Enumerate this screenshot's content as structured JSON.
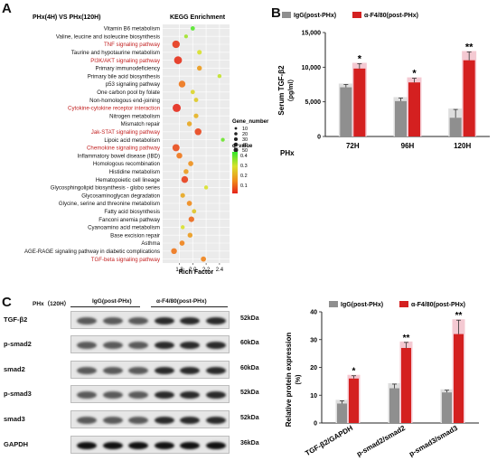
{
  "colors": {
    "accent_red": "#d42020",
    "gray": "#8f8f8f",
    "pathway_red": "#c21f1f",
    "grid": "#e9e9e9",
    "panel_bg": "#efefef"
  },
  "panels": {
    "a": "A",
    "b": "B",
    "c": "C"
  },
  "chart_data": [
    {
      "id": "kegg",
      "type": "scatter",
      "title": "KEGG Enrichment",
      "subtitle": "PHx(4H) VS PHx(120H)",
      "xlabel": "Rich Factor",
      "xlim": [
        1.55,
        2.55
      ],
      "xticks": [
        "1.8",
        "2.0",
        "2.2",
        "2.4"
      ],
      "xtick_values": [
        1.8,
        2.0,
        2.2,
        2.4
      ],
      "size_legend_title": "Gene_number",
      "size_legend": [
        "10",
        "20",
        "30",
        "40",
        "50"
      ],
      "size_legend_values": [
        10,
        20,
        30,
        40,
        50
      ],
      "color_legend_title": "q_value",
      "color_legend": [
        "0.4",
        "0.3",
        "0.2",
        "0.1"
      ],
      "color_legend_values": [
        0.4,
        0.3,
        0.2,
        0.1
      ],
      "pathways": [
        {
          "name": "Vitamin B6 metabolism",
          "x": 2.0,
          "gene": 8,
          "q": 0.42,
          "highlight": false
        },
        {
          "name": "Valine, leucine and isoleucine biosynthesis",
          "x": 1.9,
          "gene": 5,
          "q": 0.35,
          "highlight": false
        },
        {
          "name": "TNF signaling pathway",
          "x": 1.75,
          "gene": 40,
          "q": 0.03,
          "highlight": true
        },
        {
          "name": "Taurine and hypotaurine metabolism",
          "x": 2.1,
          "gene": 10,
          "q": 0.3,
          "highlight": false
        },
        {
          "name": "PI3K/AKT signaling pathway",
          "x": 1.78,
          "gene": 45,
          "q": 0.02,
          "highlight": true
        },
        {
          "name": "Primary immunodeficiency",
          "x": 2.1,
          "gene": 12,
          "q": 0.18,
          "highlight": false
        },
        {
          "name": "Primary bile acid biosynthesis",
          "x": 2.4,
          "gene": 6,
          "q": 0.32,
          "highlight": false
        },
        {
          "name": "p53 signaling pathway",
          "x": 1.84,
          "gene": 30,
          "q": 0.12,
          "highlight": false
        },
        {
          "name": "One carbon pool by folate",
          "x": 2.0,
          "gene": 8,
          "q": 0.28,
          "highlight": false
        },
        {
          "name": "Non-homologous end-joining",
          "x": 2.05,
          "gene": 8,
          "q": 0.26,
          "highlight": false
        },
        {
          "name": "Cytokine-cytokine receptor interaction",
          "x": 1.76,
          "gene": 50,
          "q": 0.01,
          "highlight": true
        },
        {
          "name": "Nitrogen metabolism",
          "x": 2.05,
          "gene": 10,
          "q": 0.22,
          "highlight": false
        },
        {
          "name": "Mismatch repair",
          "x": 1.95,
          "gene": 12,
          "q": 0.2,
          "highlight": false
        },
        {
          "name": "Jak-STAT signaling pathway",
          "x": 2.08,
          "gene": 30,
          "q": 0.05,
          "highlight": true
        },
        {
          "name": "Lipoic acid metabolism",
          "x": 2.45,
          "gene": 5,
          "q": 0.4,
          "highlight": false
        },
        {
          "name": "Chemokine signaling pathway",
          "x": 1.75,
          "gene": 35,
          "q": 0.06,
          "highlight": true
        },
        {
          "name": "Inflammatory bowel disease (IBD)",
          "x": 1.8,
          "gene": 20,
          "q": 0.12,
          "highlight": false
        },
        {
          "name": "Homologous recombination",
          "x": 1.97,
          "gene": 14,
          "q": 0.16,
          "highlight": false
        },
        {
          "name": "Histidine metabolism",
          "x": 1.9,
          "gene": 12,
          "q": 0.18,
          "highlight": false
        },
        {
          "name": "Hematopoietic cell lineage",
          "x": 1.88,
          "gene": 30,
          "q": 0.04,
          "highlight": false
        },
        {
          "name": "Glycosphingolipid biosynthesis - globo series",
          "x": 2.2,
          "gene": 6,
          "q": 0.3,
          "highlight": false
        },
        {
          "name": "Glycosaminoglycan degradation",
          "x": 1.85,
          "gene": 10,
          "q": 0.2,
          "highlight": false
        },
        {
          "name": "Glycine, serine and threonine metabolism",
          "x": 1.95,
          "gene": 14,
          "q": 0.15,
          "highlight": false
        },
        {
          "name": "Fatty acid biosynthesis",
          "x": 2.02,
          "gene": 8,
          "q": 0.25,
          "highlight": false
        },
        {
          "name": "Fanconi anemia pathway",
          "x": 1.98,
          "gene": 18,
          "q": 0.1,
          "highlight": false
        },
        {
          "name": "Cyanoamino acid metabolism",
          "x": 1.85,
          "gene": 6,
          "q": 0.3,
          "highlight": false
        },
        {
          "name": "Base excision repair",
          "x": 1.96,
          "gene": 12,
          "q": 0.18,
          "highlight": false
        },
        {
          "name": "Asthma",
          "x": 1.84,
          "gene": 14,
          "q": 0.14,
          "highlight": false
        },
        {
          "name": "AGE-RAGE signaling pathway in diabetic complications",
          "x": 1.72,
          "gene": 20,
          "q": 0.12,
          "highlight": false
        },
        {
          "name": "TGF-beta signaling pathway",
          "x": 2.16,
          "gene": 14,
          "q": 0.14,
          "highlight": true
        }
      ]
    },
    {
      "id": "serum",
      "type": "bar",
      "ylabel": "Serum TGF-β2\n（pg/ml）",
      "ylabel_line1": "Serum TGF-β2",
      "ylabel_line2": "（pg/ml）",
      "xgroup_label": "PHx",
      "categories": [
        "72H",
        "96H",
        "120H"
      ],
      "ylim": [
        0,
        15000
      ],
      "yticks": [
        "0",
        "5,000",
        "10,000",
        "15,000"
      ],
      "ytick_values": [
        0,
        5000,
        10000,
        15000
      ],
      "series": [
        {
          "name": "IgG(post-PHx)",
          "values": [
            7100,
            5100,
            2700
          ],
          "errors": [
            400,
            450,
            1200
          ]
        },
        {
          "name": "α-F4/80(post-PHx)",
          "values": [
            9800,
            7800,
            11000
          ],
          "errors": [
            700,
            600,
            1200
          ]
        }
      ],
      "significance": [
        "*",
        "*",
        "**"
      ]
    },
    {
      "id": "protein",
      "type": "bar",
      "ylabel": "Relative protein expression",
      "ylabel_unit": "(%)",
      "categories": [
        "TGF-β2/GAPDH",
        "p-smad2/smad2",
        "p-smad3/smad3"
      ],
      "ylim": [
        0,
        40
      ],
      "yticks": [
        "0",
        "10",
        "20",
        "30",
        "40"
      ],
      "ytick_values": [
        0,
        10,
        20,
        30,
        40
      ],
      "series": [
        {
          "name": "IgG(post-PHx)",
          "values": [
            7,
            12.5,
            11
          ],
          "errors": [
            1,
            1.5,
            0.8
          ]
        },
        {
          "name": "α-F4/80(post-PHx)",
          "values": [
            16,
            27,
            32
          ],
          "errors": [
            1,
            2,
            5
          ]
        }
      ],
      "significance": [
        "*",
        "**",
        "**"
      ]
    }
  ],
  "blot": {
    "header": "PHx（120H）",
    "group1": "IgG(post-PHx)",
    "group2": "α-F4/80(post-PHx)",
    "rows": [
      {
        "protein": "TGF-β2",
        "size": "52kDa"
      },
      {
        "protein": "p-smad2",
        "size": "60kDa"
      },
      {
        "protein": "smad2",
        "size": "60kDa"
      },
      {
        "protein": "p-smad3",
        "size": "52kDa"
      },
      {
        "protein": "smad3",
        "size": "52kDa"
      },
      {
        "protein": "GAPDH",
        "size": "36kDa"
      }
    ]
  }
}
